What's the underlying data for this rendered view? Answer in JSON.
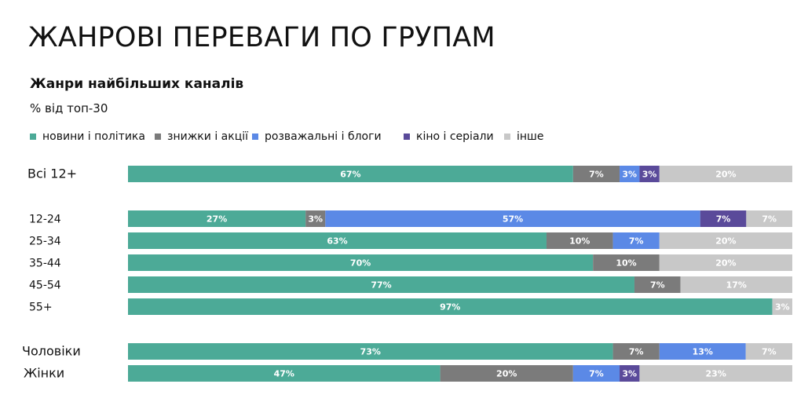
{
  "header": {
    "title": "ЖАНРОВІ ПЕРЕВАГИ ПО ГРУПАМ",
    "subtitle": "Жанри найбільших каналів",
    "note": "% від топ-30"
  },
  "chart_data": {
    "type": "bar",
    "orientation": "horizontal",
    "stacked": true,
    "normalized": true,
    "legend_position": "top",
    "grid": false,
    "categories": [
      "Всі  12+",
      "12-24",
      "25-34",
      "35-44",
      "45-54",
      "55+",
      "Чоловіки",
      "Жінки"
    ],
    "series": [
      {
        "name": "новини і політика",
        "color": "#4caa97",
        "values": [
          67,
          27,
          63,
          70,
          77,
          97,
          73,
          47
        ]
      },
      {
        "name": "знижки і акції",
        "color": "#7b7b7b",
        "values": [
          7,
          3,
          10,
          10,
          7,
          0,
          7,
          20
        ]
      },
      {
        "name": "розважальні і блоги",
        "color": "#5b89e6",
        "values": [
          3,
          57,
          7,
          0,
          0,
          0,
          13,
          7
        ]
      },
      {
        "name": "кіно і серіали",
        "color": "#5a4a9a",
        "values": [
          3,
          7,
          0,
          0,
          0,
          0,
          0,
          3
        ]
      },
      {
        "name": "інше",
        "color": "#c8c8c8",
        "values": [
          20,
          7,
          20,
          20,
          17,
          3,
          7,
          23
        ]
      }
    ]
  }
}
